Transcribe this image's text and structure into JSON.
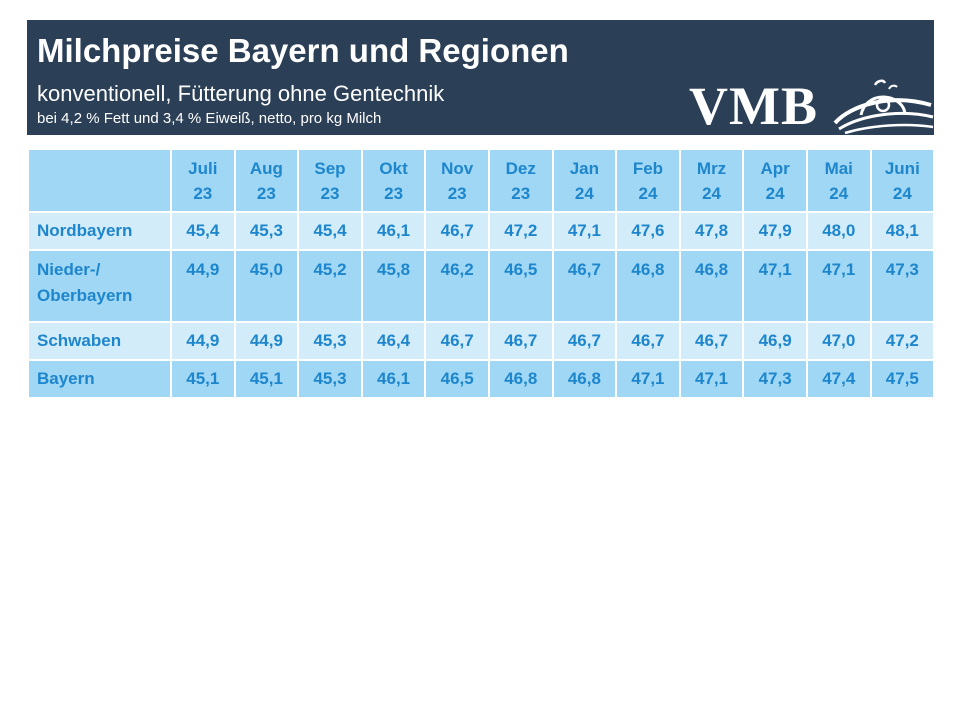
{
  "header": {
    "title": "Milchpreise Bayern und Regionen",
    "subtitle": "konventionell, Fütterung ohne Gentechnik",
    "note": "bei 4,2 % Fett und 3,4 % Eiweiß, netto, pro kg Milch",
    "logo_text": "VMB"
  },
  "colors": {
    "header_bg": "#2b3f57",
    "header_cell": "#9fd7f4",
    "row_light": "#d3ecfa",
    "row_dark": "#9fd7f4",
    "text": "#1e86cc"
  },
  "chart_data": {
    "type": "table",
    "title": "Milchpreise Bayern und Regionen",
    "columns": [
      {
        "month": "Juli",
        "year": "23"
      },
      {
        "month": "Aug",
        "year": "23"
      },
      {
        "month": "Sep",
        "year": "23"
      },
      {
        "month": "Okt",
        "year": "23"
      },
      {
        "month": "Nov",
        "year": "23"
      },
      {
        "month": "Dez",
        "year": "23"
      },
      {
        "month": "Jan",
        "year": "24"
      },
      {
        "month": "Feb",
        "year": "24"
      },
      {
        "month": "Mrz",
        "year": "24"
      },
      {
        "month": "Apr",
        "year": "24"
      },
      {
        "month": "Mai",
        "year": "24"
      },
      {
        "month": "Juni",
        "year": "24"
      }
    ],
    "rows": [
      {
        "label": [
          "Nordbayern"
        ],
        "values": [
          "45,4",
          "45,3",
          "45,4",
          "46,1",
          "46,7",
          "47,2",
          "47,1",
          "47,6",
          "47,8",
          "47,9",
          "48,0",
          "48,1"
        ]
      },
      {
        "label": [
          "Nieder-/",
          "Oberbayern"
        ],
        "values": [
          "44,9",
          "45,0",
          "45,2",
          "45,8",
          "46,2",
          "46,5",
          "46,7",
          "46,8",
          "46,8",
          "47,1",
          "47,1",
          "47,3"
        ]
      },
      {
        "label": [
          "Schwaben"
        ],
        "values": [
          "44,9",
          "44,9",
          "45,3",
          "46,4",
          "46,7",
          "46,7",
          "46,7",
          "46,7",
          "46,7",
          "46,9",
          "47,0",
          "47,2"
        ]
      },
      {
        "label": [
          "Bayern"
        ],
        "values": [
          "45,1",
          "45,1",
          "45,3",
          "46,1",
          "46,5",
          "46,8",
          "46,8",
          "47,1",
          "47,1",
          "47,3",
          "47,4",
          "47,5"
        ]
      }
    ]
  }
}
